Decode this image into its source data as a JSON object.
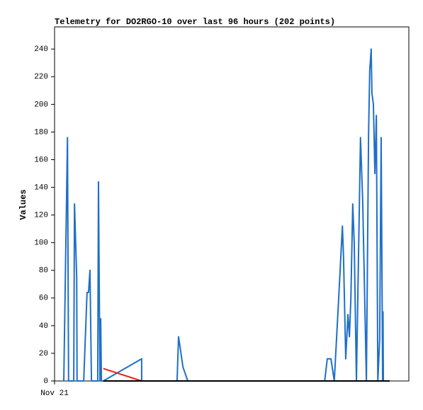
{
  "chart_data": {
    "type": "line",
    "title": "Telemetry for DO2RGO-10 over last 96 hours (202 points)",
    "y_label": "Values",
    "xlim": [
      0,
      96
    ],
    "xticks": [
      {
        "value": 0,
        "label": "Nov 21"
      }
    ],
    "ylim": [
      0,
      256
    ],
    "yticks": [
      0,
      20,
      40,
      60,
      80,
      100,
      120,
      140,
      160,
      180,
      200,
      220,
      240
    ],
    "grid": false,
    "series": [
      {
        "color": "#1f6fc9",
        "x": [
          2.5,
          3.5,
          3.8,
          5.2,
          5.4,
          6.0,
          6.1,
          7.9,
          8.8,
          9.2,
          9.6,
          10.0,
          11.7,
          11.9,
          12.3,
          12.5,
          12.7,
          13.2,
          23.6,
          23.6,
          33.2,
          33.6,
          34.8,
          36.1,
          73.2,
          73.9,
          74.9,
          75.8,
          77.0,
          78.0,
          78.3,
          78.9,
          79.5,
          79.9,
          80.3,
          80.8,
          81.2,
          81.8,
          82.9,
          83.5,
          84.5,
          85.1,
          85.4,
          85.8,
          86.0,
          86.4,
          86.8,
          87.2,
          87.6,
          88.1,
          88.5,
          88.9,
          89.0,
          89.1,
          90.8
        ],
        "values": [
          0,
          176,
          0,
          0,
          128,
          75,
          0,
          0,
          64,
          64,
          80,
          0,
          0,
          144,
          0,
          45,
          0,
          0,
          16,
          0,
          0,
          32,
          10,
          0,
          0,
          16,
          16,
          0,
          60,
          112,
          90,
          16,
          48,
          32,
          60,
          128,
          100,
          0,
          176,
          130,
          0,
          180,
          224,
          240,
          208,
          200,
          150,
          192,
          0,
          30,
          176,
          0,
          50,
          0,
          0
        ]
      },
      {
        "color": "#e8231c",
        "x": [
          13.2,
          23.6
        ],
        "values": [
          9,
          0
        ]
      },
      {
        "color": "#000000",
        "x": [
          13.2,
          90.8
        ],
        "values": [
          0,
          0
        ]
      }
    ]
  }
}
